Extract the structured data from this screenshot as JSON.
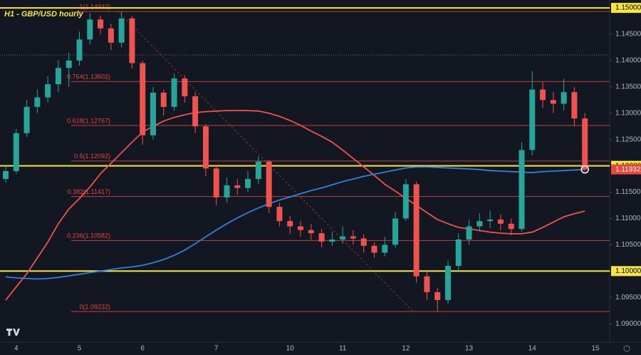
{
  "chart_data": {
    "type": "candlestick",
    "title": "H1 - GBP/USD hourly",
    "categories": [
      null,
      "4",
      null,
      null,
      null,
      null,
      null,
      "5",
      null,
      null,
      null,
      null,
      null,
      "6",
      null,
      null,
      null,
      null,
      null,
      null,
      "7",
      null,
      null,
      null,
      null,
      null,
      null,
      "10",
      null,
      null,
      null,
      null,
      "11",
      null,
      null,
      null,
      null,
      null,
      "12",
      null,
      null,
      null,
      null,
      null,
      "13",
      null,
      null,
      null,
      null,
      null,
      "14",
      null,
      null,
      null,
      null,
      null,
      "15"
    ],
    "open": [
      1.1175,
      1.119,
      1.1262,
      1.1312,
      1.133,
      1.1355,
      1.1386,
      1.14,
      1.144,
      1.1478,
      1.1461,
      1.1434,
      1.148,
      1.1395,
      1.1258,
      1.1339,
      1.1312,
      1.1366,
      1.1332,
      1.1275,
      1.1195,
      1.114,
      1.1163,
      1.1158,
      1.1175,
      1.1208,
      1.1122,
      1.1095,
      1.1085,
      1.1078,
      1.1072,
      1.1056,
      1.106,
      1.1066,
      1.1062,
      1.1048,
      1.1035,
      1.105,
      1.11,
      1.1165,
      1.099,
      1.096,
      1.0945,
      1.101,
      1.106,
      1.1085,
      1.1095,
      1.1098,
      1.109,
      1.108,
      1.123,
      1.1345,
      1.1325,
      1.1318,
      1.134,
      1.129,
      null
    ],
    "high": [
      1.1198,
      1.127,
      1.1325,
      1.1345,
      1.137,
      1.14,
      1.1415,
      1.1455,
      1.149,
      1.1485,
      1.147,
      1.14932,
      1.1485,
      1.14,
      1.135,
      1.1345,
      1.1375,
      1.1372,
      1.134,
      1.128,
      1.12,
      1.1178,
      1.1175,
      1.119,
      1.1218,
      1.1212,
      1.113,
      1.1105,
      1.1095,
      1.109,
      1.108,
      1.1075,
      1.1085,
      1.1078,
      1.107,
      1.1055,
      1.1065,
      1.1112,
      1.1175,
      1.117,
      1.1,
      1.0968,
      1.102,
      1.1072,
      1.1098,
      1.111,
      1.1115,
      1.1108,
      1.11,
      1.1245,
      1.138,
      1.136,
      1.134,
      1.1365,
      1.135,
      1.13,
      null
    ],
    "low": [
      1.1168,
      1.1185,
      1.1255,
      1.13,
      1.132,
      1.134,
      1.135,
      1.139,
      1.143,
      1.145,
      1.142,
      1.1425,
      1.1385,
      1.124,
      1.125,
      1.1295,
      1.1305,
      1.132,
      1.1262,
      1.118,
      1.1125,
      1.113,
      1.1145,
      1.115,
      1.1165,
      1.111,
      1.1085,
      1.107,
      1.1065,
      1.106,
      1.1045,
      1.1048,
      1.1052,
      1.105,
      1.1035,
      1.1025,
      1.1028,
      1.1045,
      1.1095,
      1.0978,
      1.0945,
      1.09232,
      1.0938,
      1.1,
      1.105,
      1.1075,
      1.1082,
      1.1078,
      1.1068,
      1.1075,
      1.122,
      1.131,
      1.13,
      1.1305,
      1.1275,
      1.119,
      null
    ],
    "close": [
      1.119,
      1.1262,
      1.1312,
      1.133,
      1.1355,
      1.1386,
      1.14,
      1.144,
      1.1478,
      1.1461,
      1.1434,
      1.148,
      1.1395,
      1.1258,
      1.1339,
      1.1312,
      1.1366,
      1.1332,
      1.1275,
      1.1195,
      1.114,
      1.1163,
      1.1158,
      1.1175,
      1.1208,
      1.1122,
      1.1095,
      1.1085,
      1.1078,
      1.1072,
      1.1056,
      1.106,
      1.1066,
      1.1062,
      1.1048,
      1.1035,
      1.105,
      1.11,
      1.1165,
      1.099,
      1.096,
      1.0945,
      1.101,
      1.106,
      1.1085,
      1.1095,
      1.1098,
      1.109,
      1.108,
      1.123,
      1.1345,
      1.1325,
      1.1318,
      1.134,
      1.129,
      1.11932,
      null
    ],
    "up_color": "#26a69a",
    "down_color": "#ef5350",
    "overlays": [
      {
        "color": "#f0524a",
        "values": [
          1.0945,
          1.097,
          1.0995,
          1.1025,
          1.1055,
          1.109,
          1.1118,
          1.1138,
          1.116,
          1.1185,
          1.1205,
          1.1225,
          1.1245,
          1.1264,
          1.1275,
          1.1285,
          1.1292,
          1.1297,
          1.1301,
          1.1303,
          1.1304,
          1.1305,
          1.1305,
          1.1305,
          1.1304,
          1.13,
          1.1294,
          1.1286,
          1.1277,
          1.1266,
          1.1256,
          1.1245,
          1.123,
          1.1214,
          1.1198,
          1.1182,
          1.1165,
          1.1152,
          1.1138,
          1.1125,
          1.1111,
          1.1098,
          1.109,
          1.1083,
          1.108,
          1.1077,
          1.1074,
          1.1072,
          1.1071,
          1.1071,
          1.1074,
          1.1083,
          1.1093,
          1.1103,
          1.1109,
          1.1114,
          null
        ]
      },
      {
        "color": "#2f7fe0",
        "values": [
          1.0989,
          1.0987,
          1.0986,
          1.0985,
          1.0986,
          1.0988,
          1.0991,
          1.0994,
          1.0997,
          1.1,
          1.1003,
          1.1006,
          1.1008,
          1.1011,
          1.1016,
          1.1022,
          1.103,
          1.104,
          1.1052,
          1.1065,
          1.1078,
          1.109,
          1.1101,
          1.1111,
          1.112,
          1.1128,
          1.1135,
          1.1141,
          1.1147,
          1.1153,
          1.1158,
          1.1164,
          1.117,
          1.1175,
          1.118,
          1.1184,
          1.1188,
          1.1192,
          1.1196,
          1.1198,
          1.1198,
          1.1197,
          1.1196,
          1.1195,
          1.1194,
          1.1193,
          1.1191,
          1.119,
          1.1189,
          1.1188,
          1.1187,
          1.1189,
          1.119,
          1.1191,
          1.1192,
          1.1193,
          null
        ]
      }
    ],
    "fib_color": "#e0483f",
    "fib_levels": [
      {
        "value": 1.14932,
        "label": "1(1.14932)"
      },
      {
        "value": 1.13602,
        "label": "0.764(1.13602)"
      },
      {
        "value": 1.12767,
        "label": "0.618(1.12767)"
      },
      {
        "value": 1.12092,
        "label": "0.5(1.12092)"
      },
      {
        "value": 1.11417,
        "label": "0.382(1.11417)"
      },
      {
        "value": 1.10582,
        "label": "0.236(1.10582)"
      },
      {
        "value": 1.09232,
        "label": "0(1.09232)"
      }
    ],
    "hline_color": "#f5e642",
    "hlines": [
      1.15,
      1.12,
      1.1
    ],
    "last_price": {
      "value": 1.11932,
      "label": "1.11932"
    },
    "last_price_color": "#e8473f",
    "ylim": [
      1.0865,
      1.1515
    ],
    "yticks": [
      {
        "value": 1.15,
        "label": "1.15000"
      },
      {
        "value": 1.145,
        "label": "1.14500"
      },
      {
        "value": 1.14,
        "label": "1.14000"
      },
      {
        "value": 1.135,
        "label": "1.13500"
      },
      {
        "value": 1.13,
        "label": "1.13000"
      },
      {
        "value": 1.125,
        "label": "1.12500"
      },
      {
        "value": 1.12,
        "label": "1.12000"
      },
      {
        "value": 1.115,
        "label": "1.11500"
      },
      {
        "value": 1.11,
        "label": "1.11000"
      },
      {
        "value": 1.105,
        "label": "1.10500"
      },
      {
        "value": 1.1,
        "label": "1.10000"
      },
      {
        "value": 1.095,
        "label": "1.09500"
      },
      {
        "value": 1.09,
        "label": "1.09000"
      }
    ],
    "grid": false
  }
}
